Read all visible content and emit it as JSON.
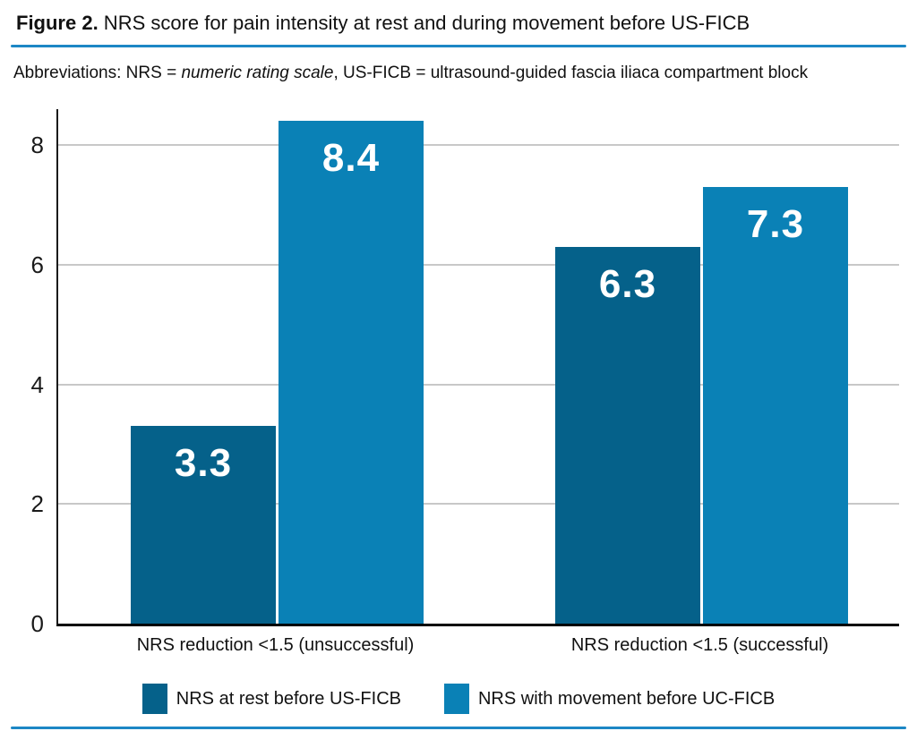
{
  "page": {
    "title_prefix": "Figure 2.",
    "title_rest": " NRS score for pain intensity at rest and during movement before US-FICB",
    "abbrev_prefix": "Abbreviations: NRS = ",
    "abbrev_italic": "numeric rating scale",
    "abbrev_rest": ", US-FICB = ultrasound-guided fascia iliaca compartment block",
    "accent_color": "#1c87c5"
  },
  "chart_data": {
    "type": "bar",
    "title": "NRS score for pain intensity at rest and during movement before US-FICB",
    "categories": [
      "NRS reduction <1.5 (unsuccessful)",
      "NRS reduction <1.5 (successful)"
    ],
    "series": [
      {
        "name": "NRS at rest before US-FICB",
        "color": "#05618a",
        "values": [
          3.3,
          6.3
        ]
      },
      {
        "name": "NRS with movement before UC-FICB",
        "color": "#0a81b6",
        "values": [
          8.4,
          7.3
        ]
      }
    ],
    "value_labels": [
      "3.3",
      "8.4",
      "6.3",
      "7.3"
    ],
    "xlabel": "",
    "ylabel": "",
    "ylim": [
      0,
      8.6
    ],
    "yticks": [
      0,
      2,
      4,
      6,
      8
    ],
    "grid": true,
    "gridline_color": "#c8c8c8",
    "legend_position": "bottom"
  }
}
